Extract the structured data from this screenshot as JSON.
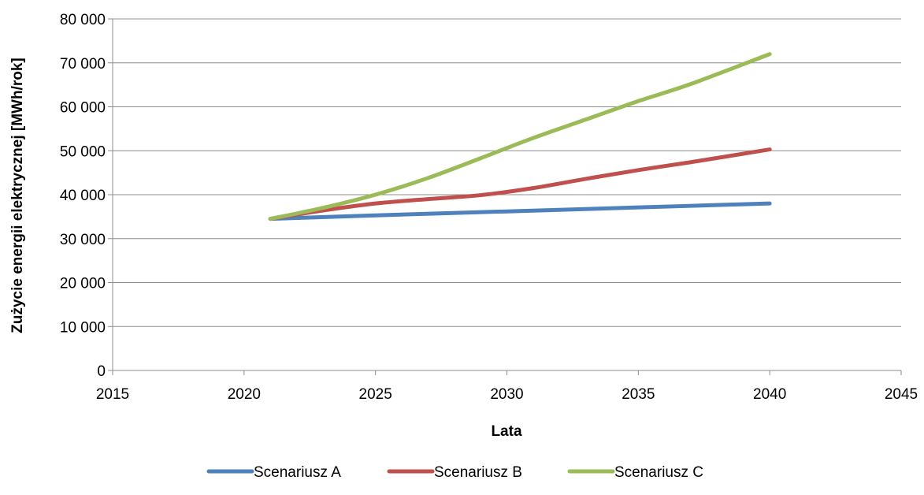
{
  "chart_data": {
    "type": "line",
    "title": "",
    "xlabel": "Lata",
    "ylabel": "Zużycie energii elektrycznej [MWh/rok]",
    "xlim": [
      2015,
      2045
    ],
    "ylim": [
      0,
      80000
    ],
    "x_ticks": [
      2015,
      2020,
      2025,
      2030,
      2035,
      2040,
      2045
    ],
    "x_tick_labels": [
      "2015",
      "2020",
      "2025",
      "2030",
      "2035",
      "2040",
      "2045"
    ],
    "y_ticks": [
      0,
      10000,
      20000,
      30000,
      40000,
      50000,
      60000,
      70000,
      80000
    ],
    "y_tick_labels": [
      "0",
      "10 000",
      "20 000",
      "30 000",
      "40 000",
      "50 000",
      "60 000",
      "70 000",
      "80 000"
    ],
    "grid": "horizontal",
    "legend_position": "bottom",
    "smooth": true,
    "series": [
      {
        "name": "Scenariusz A",
        "color": "#4F81BD",
        "x": [
          2021,
          2025,
          2030,
          2035,
          2040
        ],
        "y": [
          34500,
          35300,
          36200,
          37100,
          38000
        ]
      },
      {
        "name": "Scenariusz B",
        "color": "#C0504D",
        "x": [
          2021,
          2023,
          2025,
          2027,
          2029,
          2031,
          2033,
          2035,
          2037,
          2040
        ],
        "y": [
          34500,
          36400,
          38000,
          39000,
          39900,
          41500,
          43600,
          45600,
          47400,
          50300
        ]
      },
      {
        "name": "Scenariusz C",
        "color": "#9BBB59",
        "x": [
          2021,
          2023,
          2025,
          2027,
          2029,
          2031,
          2033,
          2035,
          2037,
          2040
        ],
        "y": [
          34500,
          37000,
          40000,
          43800,
          48300,
          52900,
          57100,
          61300,
          65200,
          72000
        ]
      }
    ]
  }
}
